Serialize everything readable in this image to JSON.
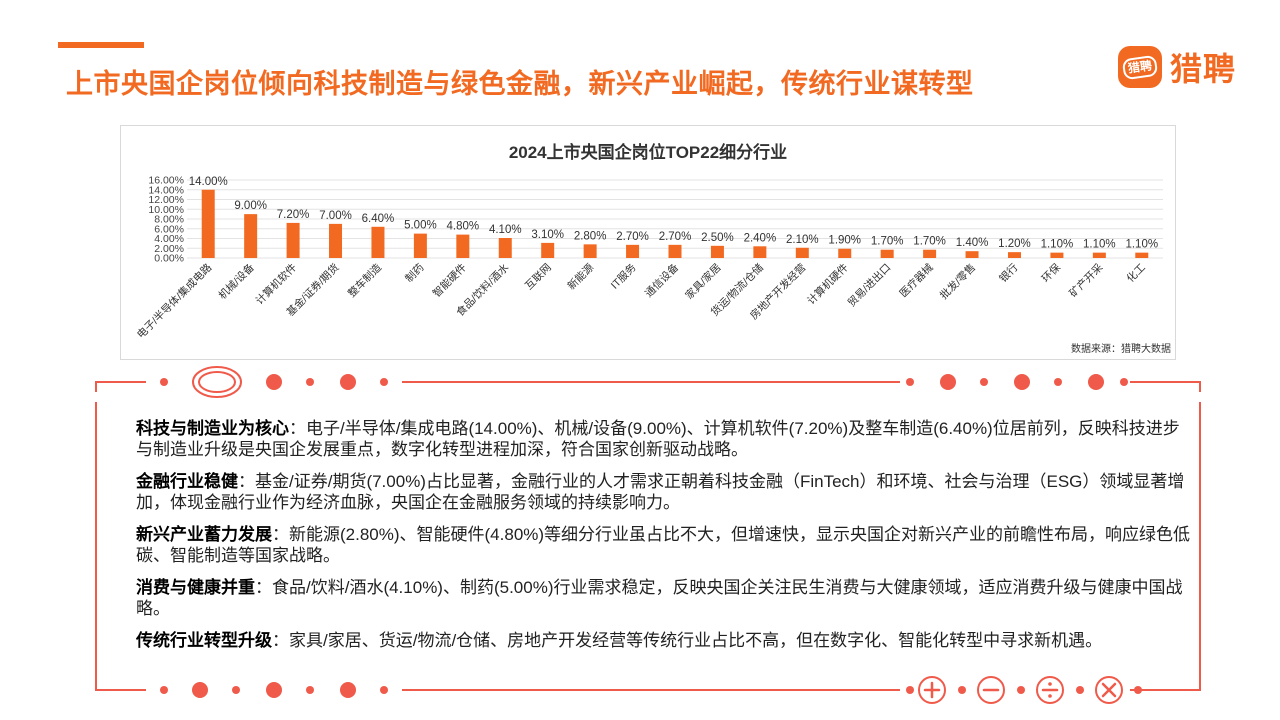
{
  "header": {
    "title": "上市央国企岗位倾向科技制造与绿色金融，新兴产业崛起，传统行业谋转型",
    "logo_mark": "猎聘",
    "logo_text": "猎聘"
  },
  "colors": {
    "accent": "#f26a21",
    "bar": "#f26a21",
    "frame": "#f05a4a"
  },
  "chart_source": "数据来源：猎聘大数据",
  "chart_data": {
    "type": "bar",
    "title": "2024上市央国企岗位TOP22细分行业",
    "categories": [
      "电子/半导体/集成电路",
      "机械/设备",
      "计算机软件",
      "基金/证券/期货",
      "整车制造",
      "制药",
      "智能硬件",
      "食品/饮料/酒水",
      "互联网",
      "新能源",
      "IT服务",
      "通信设备",
      "家具/家居",
      "货运/物流/仓储",
      "房地产开发经营",
      "计算机硬件",
      "贸易/进出口",
      "医疗器械",
      "批发/零售",
      "银行",
      "环保",
      "矿产开采",
      "化工"
    ],
    "values": [
      14.0,
      9.0,
      7.2,
      7.0,
      6.4,
      5.0,
      4.8,
      4.1,
      3.1,
      2.8,
      2.7,
      2.7,
      2.5,
      2.4,
      2.1,
      1.9,
      1.7,
      1.7,
      1.4,
      1.2,
      1.1,
      1.1,
      1.1
    ],
    "value_labels": [
      "14.00%",
      "9.00%",
      "7.20%",
      "7.00%",
      "6.40%",
      "5.00%",
      "4.80%",
      "4.10%",
      "3.10%",
      "2.80%",
      "2.70%",
      "2.70%",
      "2.50%",
      "2.40%",
      "2.10%",
      "1.90%",
      "1.70%",
      "1.70%",
      "1.40%",
      "1.20%",
      "1.10%",
      "1.10%",
      "1.10%"
    ],
    "yticks": [
      "0.00%",
      "2.00%",
      "4.00%",
      "6.00%",
      "8.00%",
      "10.00%",
      "12.00%",
      "14.00%",
      "16.00%"
    ],
    "ylim": [
      0,
      16
    ],
    "grid": true,
    "legend": "none",
    "xlabel": "",
    "ylabel": ""
  },
  "paragraphs": [
    {
      "heading": "科技与制造业为核心",
      "body": "：电子/半导体/集成电路(14.00%)、机械/设备(9.00%)、计算机软件(7.20%)及整车制造(6.40%)位居前列，反映科技进步与制造业升级是央国企发展重点，数字化转型进程加深，符合国家创新驱动战略。"
    },
    {
      "heading": "金融行业稳健",
      "body": "：基金/证券/期货(7.00%)占比显著，金融行业的人才需求正朝着科技金融（FinTech）和环境、社会与治理（ESG）领域显著增加，体现金融行业作为经济血脉，央国企在金融服务领域的持续影响力。"
    },
    {
      "heading": "新兴产业蓄力发展",
      "body": "：新能源(2.80%)、智能硬件(4.80%)等细分行业虽占比不大，但增速快，显示央国企对新兴产业的前瞻性布局，响应绿色低碳、智能制造等国家战略。"
    },
    {
      "heading": "消费与健康并重",
      "body": "：食品/饮料/酒水(4.10%)、制药(5.00%)行业需求稳定，反映央国企关注民生消费与大健康领域，适应消费升级与健康中国战略。"
    },
    {
      "heading": "传统行业转型升级",
      "body": "：家具/家居、货运/物流/仓储、房地产开发经营等传统行业占比不高，但在数字化、智能化转型中寻求新机遇。"
    }
  ]
}
